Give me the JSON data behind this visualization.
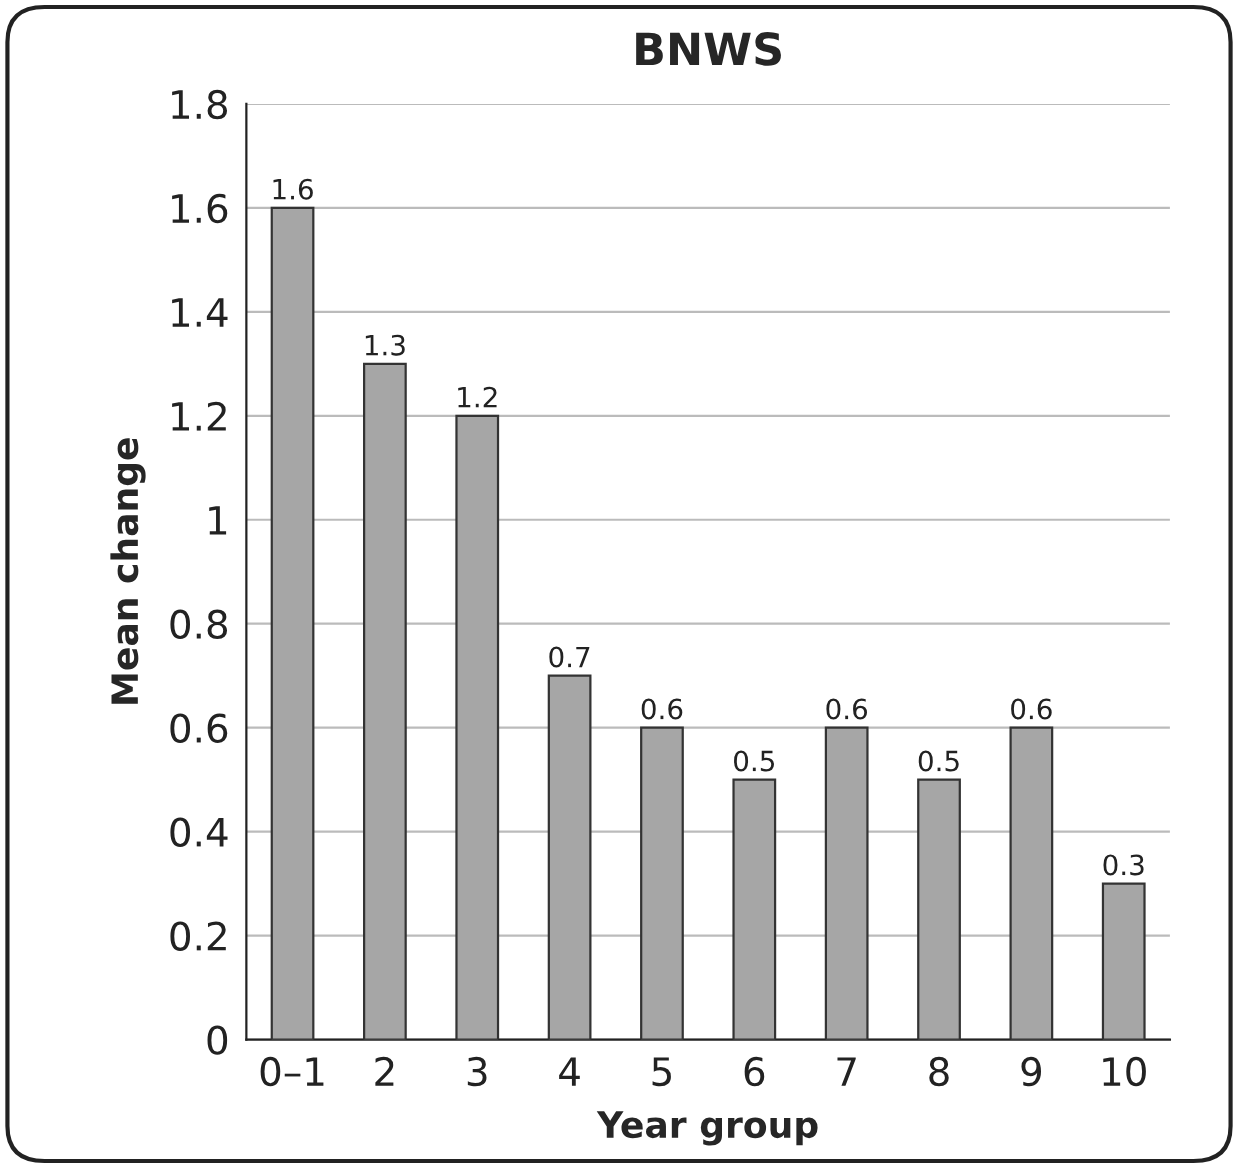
{
  "chart_data": {
    "type": "bar",
    "title": "BNWS",
    "xlabel": "Year group",
    "ylabel": "Mean change",
    "categories": [
      "0–1",
      "2",
      "3",
      "4",
      "5",
      "6",
      "7",
      "8",
      "9",
      "10"
    ],
    "values": [
      1.6,
      1.3,
      1.2,
      0.7,
      0.6,
      0.5,
      0.6,
      0.5,
      0.6,
      0.3
    ],
    "color": "#a6a6a6",
    "ylim": [
      0,
      1.8
    ],
    "yticks": [
      0,
      0.2,
      0.4,
      0.6,
      0.8,
      1,
      1.2,
      1.4,
      1.6,
      1.8
    ],
    "grid": "y",
    "data_labels": true
  }
}
